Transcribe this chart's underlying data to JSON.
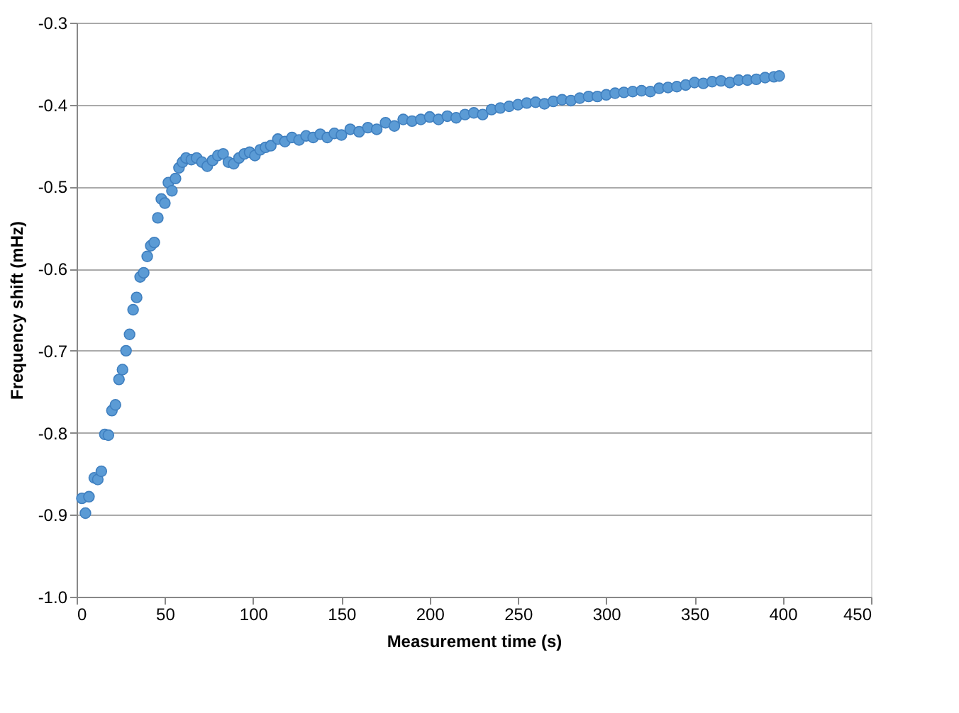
{
  "chart_data": {
    "type": "scatter",
    "xlabel": "Measurement time (s)",
    "ylabel": "Frequency shift (mHz)",
    "xlim": [
      0,
      450
    ],
    "xticks": [
      0,
      50,
      100,
      150,
      200,
      250,
      300,
      350,
      400,
      450
    ],
    "ylim": [
      -1.0,
      -0.3
    ],
    "yticks": [
      {
        "value": -1.0,
        "label": "-1.0"
      },
      -0.9,
      -0.8,
      -0.7,
      -0.6,
      -0.5,
      -0.4,
      -0.3
    ],
    "grid": "y",
    "series": [
      {
        "color": "#5b9bd5",
        "x": [
          3,
          5,
          7,
          10,
          12,
          14,
          16,
          18,
          20,
          22,
          24,
          26,
          28,
          30,
          32,
          34,
          36,
          38,
          40,
          42,
          44,
          46,
          48,
          50,
          52,
          54,
          56,
          58,
          60,
          62,
          65,
          68,
          71,
          74,
          77,
          80,
          83,
          86,
          89,
          92,
          95,
          98,
          101,
          104,
          107,
          110,
          114,
          118,
          122,
          126,
          130,
          134,
          138,
          142,
          146,
          150,
          155,
          160,
          165,
          170,
          175,
          180,
          185,
          190,
          195,
          200,
          205,
          210,
          215,
          220,
          225,
          230,
          235,
          240,
          245,
          250,
          255,
          260,
          265,
          270,
          275,
          280,
          285,
          290,
          295,
          300,
          305,
          310,
          315,
          320,
          325,
          330,
          335,
          340,
          345,
          350,
          355,
          360,
          365,
          370,
          375,
          380,
          385,
          390,
          395,
          398
        ],
        "values": [
          -0.88,
          -0.898,
          -0.878,
          -0.855,
          -0.857,
          -0.847,
          -0.802,
          -0.803,
          -0.773,
          -0.766,
          -0.735,
          -0.723,
          -0.7,
          -0.68,
          -0.65,
          -0.635,
          -0.61,
          -0.605,
          -0.585,
          -0.572,
          -0.568,
          -0.538,
          -0.515,
          -0.52,
          -0.495,
          -0.505,
          -0.49,
          -0.477,
          -0.47,
          -0.465,
          -0.467,
          -0.465,
          -0.47,
          -0.475,
          -0.468,
          -0.462,
          -0.46,
          -0.47,
          -0.472,
          -0.465,
          -0.46,
          -0.458,
          -0.462,
          -0.455,
          -0.452,
          -0.45,
          -0.442,
          -0.445,
          -0.44,
          -0.443,
          -0.438,
          -0.44,
          -0.436,
          -0.44,
          -0.435,
          -0.437,
          -0.43,
          -0.433,
          -0.428,
          -0.43,
          -0.422,
          -0.426,
          -0.418,
          -0.42,
          -0.418,
          -0.415,
          -0.418,
          -0.414,
          -0.416,
          -0.412,
          -0.41,
          -0.412,
          -0.406,
          -0.404,
          -0.402,
          -0.4,
          -0.398,
          -0.397,
          -0.399,
          -0.396,
          -0.394,
          -0.395,
          -0.392,
          -0.39,
          -0.39,
          -0.388,
          -0.386,
          -0.385,
          -0.384,
          -0.383,
          -0.384,
          -0.38,
          -0.379,
          -0.378,
          -0.376,
          -0.373,
          -0.374,
          -0.372,
          -0.371,
          -0.373,
          -0.37,
          -0.37,
          -0.369,
          -0.367,
          -0.366,
          -0.365
        ]
      }
    ]
  }
}
